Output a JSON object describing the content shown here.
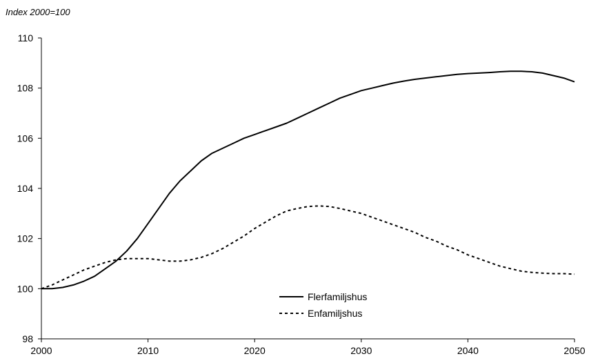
{
  "chart_data": {
    "type": "line",
    "title": "",
    "unit_label": "Index 2000=100",
    "xlabel": "",
    "ylabel": "",
    "xlim": [
      2000,
      2050
    ],
    "ylim": [
      98,
      110
    ],
    "x_ticks": [
      2000,
      2010,
      2020,
      2030,
      2040,
      2050
    ],
    "y_ticks": [
      98,
      100,
      102,
      104,
      106,
      108,
      110
    ],
    "grid": false,
    "legend_position": "bottom-center",
    "series": [
      {
        "name": "Flerfamiljshus",
        "style": "solid",
        "color": "#000000",
        "x": [
          2000,
          2001,
          2002,
          2003,
          2004,
          2005,
          2006,
          2007,
          2008,
          2009,
          2010,
          2011,
          2012,
          2013,
          2014,
          2015,
          2016,
          2017,
          2018,
          2019,
          2020,
          2021,
          2022,
          2023,
          2024,
          2025,
          2026,
          2027,
          2028,
          2029,
          2030,
          2031,
          2032,
          2033,
          2034,
          2035,
          2036,
          2037,
          2038,
          2039,
          2040,
          2041,
          2042,
          2043,
          2044,
          2045,
          2046,
          2047,
          2048,
          2049,
          2050
        ],
        "values": [
          100.0,
          100.0,
          100.05,
          100.15,
          100.3,
          100.5,
          100.8,
          101.1,
          101.5,
          102.0,
          102.6,
          103.2,
          103.8,
          104.3,
          104.7,
          105.1,
          105.4,
          105.6,
          105.8,
          106.0,
          106.15,
          106.3,
          106.45,
          106.6,
          106.8,
          107.0,
          107.2,
          107.4,
          107.6,
          107.75,
          107.9,
          108.0,
          108.1,
          108.2,
          108.28,
          108.35,
          108.4,
          108.45,
          108.5,
          108.55,
          108.58,
          108.6,
          108.62,
          108.65,
          108.67,
          108.67,
          108.65,
          108.6,
          108.5,
          108.4,
          108.25
        ]
      },
      {
        "name": "Enfamiljshus",
        "style": "dotted",
        "color": "#000000",
        "x": [
          2000,
          2001,
          2002,
          2003,
          2004,
          2005,
          2006,
          2007,
          2008,
          2009,
          2010,
          2011,
          2012,
          2013,
          2014,
          2015,
          2016,
          2017,
          2018,
          2019,
          2020,
          2021,
          2022,
          2023,
          2024,
          2025,
          2026,
          2027,
          2028,
          2029,
          2030,
          2031,
          2032,
          2033,
          2034,
          2035,
          2036,
          2037,
          2038,
          2039,
          2040,
          2041,
          2042,
          2043,
          2044,
          2045,
          2046,
          2047,
          2048,
          2049,
          2050
        ],
        "values": [
          100.0,
          100.15,
          100.35,
          100.55,
          100.75,
          100.9,
          101.05,
          101.15,
          101.2,
          101.2,
          101.2,
          101.15,
          101.1,
          101.1,
          101.15,
          101.25,
          101.4,
          101.6,
          101.85,
          102.1,
          102.4,
          102.65,
          102.9,
          103.1,
          103.2,
          103.28,
          103.3,
          103.28,
          103.2,
          103.1,
          103.0,
          102.85,
          102.7,
          102.55,
          102.4,
          102.25,
          102.05,
          101.9,
          101.7,
          101.55,
          101.35,
          101.2,
          101.05,
          100.9,
          100.8,
          100.7,
          100.65,
          100.62,
          100.6,
          100.6,
          100.58
        ]
      }
    ]
  }
}
